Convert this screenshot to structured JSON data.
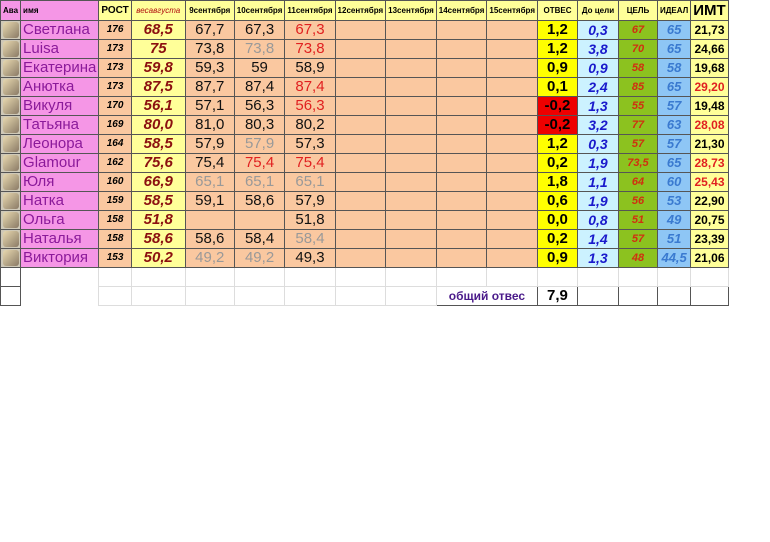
{
  "headers": [
    "Ава",
    "имя",
    "РОСТ",
    "весавгуста",
    "9сентября",
    "10сентября",
    "11сентября",
    "12сентября",
    "13сентября",
    "14сентября",
    "15сентября",
    "ОТВЕС",
    "До цели",
    "ЦЕЛЬ",
    "ИДЕАЛ",
    "ИМТ"
  ],
  "rows": [
    {
      "name": "Светлана",
      "rost": "176",
      "ves": "68,5",
      "d": [
        [
          "67,7",
          ""
        ],
        [
          "67,3",
          ""
        ],
        [
          "67,3",
          "red"
        ]
      ],
      "otves": "1,2",
      "do_celi": "0,3",
      "cel": "67",
      "ideal": "65",
      "imt": "21,73",
      "imt_red": false
    },
    {
      "name": "Luisa",
      "rost": "173",
      "ves": "75",
      "d": [
        [
          "73,8",
          ""
        ],
        [
          "73,8",
          "gray"
        ],
        [
          "73,8",
          "red"
        ]
      ],
      "otves": "1,2",
      "do_celi": "3,8",
      "cel": "70",
      "ideal": "65",
      "imt": "24,66",
      "imt_red": false
    },
    {
      "name": "Екатерина",
      "rost": "173",
      "ves": "59,8",
      "d": [
        [
          "59,3",
          ""
        ],
        [
          "59",
          ""
        ],
        [
          "58,9",
          ""
        ]
      ],
      "otves": "0,9",
      "do_celi": "0,9",
      "cel": "58",
      "ideal": "58",
      "imt": "19,68",
      "imt_red": false
    },
    {
      "name": "Анютка",
      "rost": "173",
      "ves": "87,5",
      "d": [
        [
          "87,7",
          ""
        ],
        [
          "87,4",
          ""
        ],
        [
          "87,4",
          "red"
        ]
      ],
      "otves": "0,1",
      "do_celi": "2,4",
      "cel": "85",
      "ideal": "65",
      "imt": "29,20",
      "imt_red": true
    },
    {
      "name": "Викуля",
      "rost": "170",
      "ves": "56,1",
      "d": [
        [
          "57,1",
          ""
        ],
        [
          "56,3",
          ""
        ],
        [
          "56,3",
          "red"
        ]
      ],
      "otves": "-0,2",
      "do_celi": "1,3",
      "cel": "55",
      "ideal": "57",
      "imt": "19,48",
      "imt_red": false
    },
    {
      "name": "Татьяна",
      "rost": "169",
      "ves": "80,0",
      "d": [
        [
          "81,0",
          ""
        ],
        [
          "80,3",
          ""
        ],
        [
          "80,2",
          ""
        ]
      ],
      "otves": "-0,2",
      "do_celi": "3,2",
      "cel": "77",
      "ideal": "63",
      "imt": "28,08",
      "imt_red": true
    },
    {
      "name": "Леонора",
      "rost": "164",
      "ves": "58,5",
      "d": [
        [
          "57,9",
          ""
        ],
        [
          "57,9",
          "gray"
        ],
        [
          "57,3",
          ""
        ]
      ],
      "otves": "1,2",
      "do_celi": "0,3",
      "cel": "57",
      "ideal": "57",
      "imt": "21,30",
      "imt_red": false
    },
    {
      "name": "Glamour",
      "rost": "162",
      "ves": "75,6",
      "d": [
        [
          "75,4",
          ""
        ],
        [
          "75,4",
          "red"
        ],
        [
          "75,4",
          "red"
        ]
      ],
      "otves": "0,2",
      "do_celi": "1,9",
      "cel": "73,5",
      "ideal": "65",
      "imt": "28,73",
      "imt_red": true
    },
    {
      "name": "Юля",
      "rost": "160",
      "ves": "66,9",
      "d": [
        [
          "65,1",
          "gray"
        ],
        [
          "65,1",
          "gray"
        ],
        [
          "65,1",
          "gray"
        ]
      ],
      "otves": "1,8",
      "do_celi": "1,1",
      "cel": "64",
      "ideal": "60",
      "imt": "25,43",
      "imt_red": true
    },
    {
      "name": "Натка",
      "rost": "159",
      "ves": "58,5",
      "d": [
        [
          "59,1",
          ""
        ],
        [
          "58,6",
          ""
        ],
        [
          "57,9",
          ""
        ]
      ],
      "otves": "0,6",
      "do_celi": "1,9",
      "cel": "56",
      "ideal": "53",
      "imt": "22,90",
      "imt_red": false
    },
    {
      "name": "Ольга",
      "rost": "158",
      "ves": "51,8",
      "d": [
        [
          "",
          ""
        ],
        [
          "",
          ""
        ],
        [
          "51,8",
          ""
        ]
      ],
      "otves": "0,0",
      "do_celi": "0,8",
      "cel": "51",
      "ideal": "49",
      "imt": "20,75",
      "imt_red": false
    },
    {
      "name": "Наталья",
      "rost": "158",
      "ves": "58,6",
      "d": [
        [
          "58,6",
          ""
        ],
        [
          "58,4",
          ""
        ],
        [
          "58,4",
          "gray"
        ]
      ],
      "otves": "0,2",
      "do_celi": "1,4",
      "cel": "57",
      "ideal": "51",
      "imt": "23,39",
      "imt_red": false
    },
    {
      "name": "Виктория",
      "rost": "153",
      "ves": "50,2",
      "d": [
        [
          "49,2",
          "gray"
        ],
        [
          "49,2",
          "gray"
        ],
        [
          "49,3",
          ""
        ]
      ],
      "otves": "0,9",
      "do_celi": "1,3",
      "cel": "48",
      "ideal": "44,5",
      "imt": "21,06",
      "imt_red": false
    }
  ],
  "summary": {
    "label": "общий отвес",
    "value": "7,9"
  }
}
